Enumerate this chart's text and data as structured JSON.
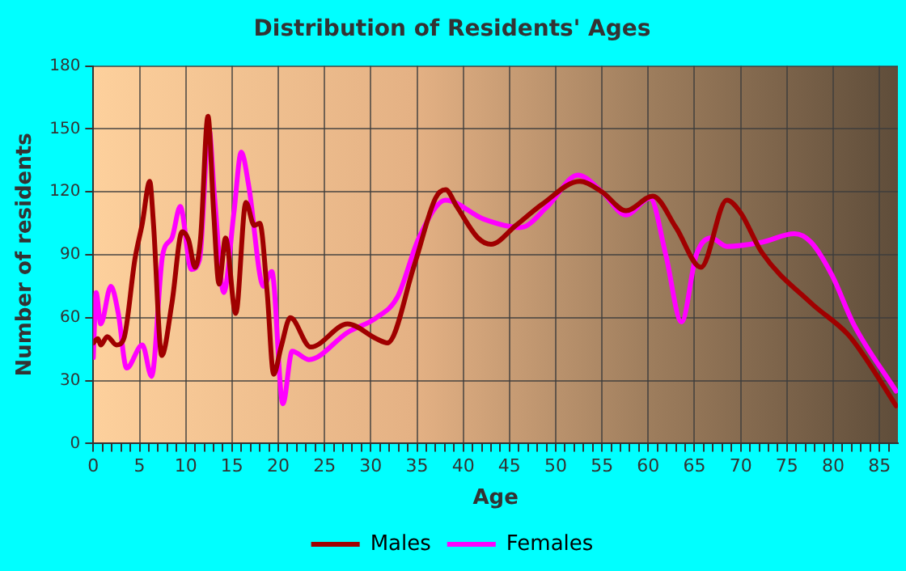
{
  "chart_data": {
    "type": "line",
    "title": "Distribution of Residents' Ages",
    "xlabel": "Age",
    "ylabel": "Number of residents",
    "xlim": [
      0,
      87
    ],
    "ylim": [
      0,
      180
    ],
    "xticks": [
      0,
      {
        "value": 1,
        "label": null
      },
      {
        "value": 2,
        "label": null
      },
      {
        "value": 3,
        "label": null
      },
      {
        "value": 4,
        "label": null
      },
      5,
      {
        "value": 6,
        "label": null
      },
      {
        "value": 7,
        "label": null
      },
      {
        "value": 8,
        "label": null
      },
      {
        "value": 9,
        "label": null
      },
      10,
      {
        "value": 11,
        "label": null
      },
      {
        "value": 12,
        "label": null
      },
      {
        "value": 13,
        "label": null
      },
      {
        "value": 14,
        "label": null
      },
      15,
      {
        "value": 16,
        "label": null
      },
      {
        "value": 17,
        "label": null
      },
      {
        "value": 18,
        "label": null
      },
      {
        "value": 19,
        "label": null
      },
      20,
      {
        "value": 21,
        "label": null
      },
      {
        "value": 22,
        "label": null
      },
      {
        "value": 23,
        "label": null
      },
      {
        "value": 24,
        "label": null
      },
      25,
      {
        "value": 26,
        "label": null
      },
      {
        "value": 27,
        "label": null
      },
      {
        "value": 28,
        "label": null
      },
      {
        "value": 29,
        "label": null
      },
      30,
      {
        "value": 31,
        "label": null
      },
      {
        "value": 32,
        "label": null
      },
      {
        "value": 33,
        "label": null
      },
      {
        "value": 34,
        "label": null
      },
      35,
      {
        "value": 36,
        "label": null
      },
      {
        "value": 37,
        "label": null
      },
      {
        "value": 38,
        "label": null
      },
      {
        "value": 39,
        "label": null
      },
      40,
      {
        "value": 41,
        "label": null
      },
      {
        "value": 42,
        "label": null
      },
      {
        "value": 43,
        "label": null
      },
      {
        "value": 44,
        "label": null
      },
      45,
      {
        "value": 46,
        "label": null
      },
      {
        "value": 47,
        "label": null
      },
      {
        "value": 48,
        "label": null
      },
      {
        "value": 49,
        "label": null
      },
      50,
      {
        "value": 51,
        "label": null
      },
      {
        "value": 52,
        "label": null
      },
      {
        "value": 53,
        "label": null
      },
      {
        "value": 54,
        "label": null
      },
      55,
      {
        "value": 56,
        "label": null
      },
      {
        "value": 57,
        "label": null
      },
      {
        "value": 58,
        "label": null
      },
      {
        "value": 59,
        "label": null
      },
      60,
      {
        "value": 61,
        "label": null
      },
      {
        "value": 62,
        "label": null
      },
      {
        "value": 63,
        "label": null
      },
      {
        "value": 64,
        "label": null
      },
      65,
      {
        "value": 66,
        "label": null
      },
      {
        "value": 67,
        "label": null
      },
      {
        "value": 68,
        "label": null
      },
      {
        "value": 69,
        "label": null
      },
      70,
      {
        "value": 71,
        "label": null
      },
      {
        "value": 72,
        "label": null
      },
      {
        "value": 73,
        "label": null
      },
      {
        "value": 74,
        "label": null
      },
      75,
      {
        "value": 76,
        "label": null
      },
      {
        "value": 77,
        "label": null
      },
      {
        "value": 78,
        "label": null
      },
      {
        "value": 79,
        "label": null
      },
      80,
      {
        "value": 81,
        "label": null
      },
      {
        "value": 82,
        "label": null
      },
      {
        "value": 83,
        "label": null
      },
      {
        "value": 84,
        "label": null
      },
      85,
      {
        "value": 86,
        "label": null
      }
    ],
    "yticks": [
      0,
      30,
      60,
      90,
      120,
      150,
      180
    ],
    "grid": true,
    "legend": "bottom",
    "marker": "none",
    "line_style": "solid",
    "series": [
      {
        "name": "Males",
        "color": "#a00000",
        "x": [
          0,
          0.5,
          0.8,
          1.5,
          2.5,
          3.3,
          4.5,
          5.3,
          6.1,
          6.5,
          7.4,
          8.5,
          9.6,
          10.3,
          11,
          11.6,
          12.4,
          13,
          13.6,
          14.3,
          15.4,
          16.5,
          17.4,
          18,
          18.8,
          19.5,
          20.3,
          21.3,
          23.5,
          27.5,
          30.6,
          31.8,
          34.7,
          37,
          38.1,
          39.3,
          41.6,
          43,
          45.7,
          48.5,
          52.6,
          55,
          57.6,
          60.5,
          63,
          65.7,
          68.5,
          70,
          72.3,
          77.6,
          81.6,
          83.3,
          86.8
        ],
        "values": [
          48,
          50,
          47,
          51,
          47,
          50,
          88,
          105,
          125,
          105,
          42,
          67,
          101,
          97,
          84,
          98,
          156,
          111,
          76,
          98,
          62,
          115,
          104,
          105,
          72,
          33,
          46,
          60,
          46,
          57,
          50,
          48,
          85,
          117,
          121,
          113,
          98,
          95,
          104,
          114,
          125,
          120,
          111,
          118,
          103,
          84,
          116,
          110,
          91,
          67,
          52,
          42,
          18
        ]
      },
      {
        "name": "Females",
        "color": "#ff00ff",
        "x": [
          0,
          0.3,
          0.8,
          1.9,
          2.7,
          3.6,
          5.3,
          6.3,
          7.5,
          8.5,
          9.4,
          10.6,
          11.5,
          12.5,
          13.1,
          14.1,
          15.2,
          16,
          16.8,
          18.4,
          19.3,
          20.5,
          21.5,
          23.3,
          27.5,
          30.6,
          32.9,
          35.2,
          38.1,
          42.2,
          46.2,
          49.1,
          52.4,
          55,
          57.6,
          60.2,
          61.9,
          63.6,
          65.2,
          66.8,
          68.5,
          72.3,
          75.8,
          77.6,
          79.9,
          82.2,
          86.8
        ],
        "values": [
          41,
          72,
          57,
          75,
          62,
          36,
          47,
          32,
          90,
          98,
          113,
          83,
          88,
          150,
          118,
          72,
          110,
          139,
          123,
          75,
          82,
          19,
          44,
          40,
          53,
          60,
          70,
          98,
          116,
          107,
          103,
          113,
          128,
          120,
          109,
          117,
          90,
          58,
          90,
          98,
          94,
          96,
          100,
          96,
          80,
          57,
          25
        ]
      }
    ]
  }
}
